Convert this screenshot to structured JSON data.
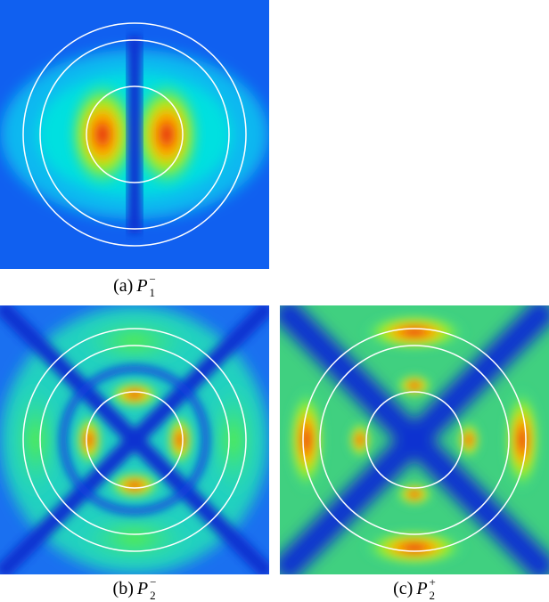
{
  "panels": [
    {
      "id": "a",
      "label": "(a)",
      "symbol": "P",
      "subscript": "1",
      "superscript": "−"
    },
    {
      "id": "b",
      "label": "(b)",
      "symbol": "P",
      "subscript": "2",
      "superscript": "−"
    },
    {
      "id": "c",
      "label": "(c)",
      "symbol": "P",
      "subscript": "2",
      "superscript": "+"
    }
  ],
  "colors": {
    "low": "#0a3cf0",
    "mid": "#00e0e0",
    "high": "#e01010",
    "circle": "#ffffff"
  }
}
